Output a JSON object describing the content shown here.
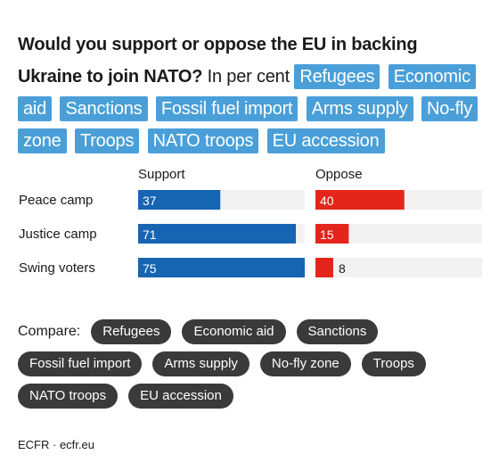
{
  "heading": {
    "title": "Would you support or oppose the EU in backing Ukraine to join NATO?",
    "subtitle": "In per cent",
    "topics": [
      "Refugees",
      "Economic aid",
      "Sanctions",
      "Fossil fuel import",
      "Arms supply",
      "No-fly zone",
      "Troops",
      "NATO troops",
      "EU accession"
    ]
  },
  "chart_data": {
    "type": "bar",
    "categories": [
      "Peace camp",
      "Justice camp",
      "Swing voters"
    ],
    "series": [
      {
        "name": "Support",
        "values": [
          37,
          71,
          75
        ],
        "color": "#1565b3"
      },
      {
        "name": "Oppose",
        "values": [
          40,
          15,
          8
        ],
        "color": "#e3251b"
      }
    ],
    "xlim": [
      0,
      75
    ],
    "track_color": "#f2f2f2"
  },
  "compare": {
    "label": "Compare:",
    "options": [
      "Refugees",
      "Economic aid",
      "Sanctions",
      "Fossil fuel import",
      "Arms supply",
      "No-fly zone",
      "Troops",
      "NATO troops",
      "EU accession"
    ]
  },
  "source": "ECFR · ecfr.eu"
}
